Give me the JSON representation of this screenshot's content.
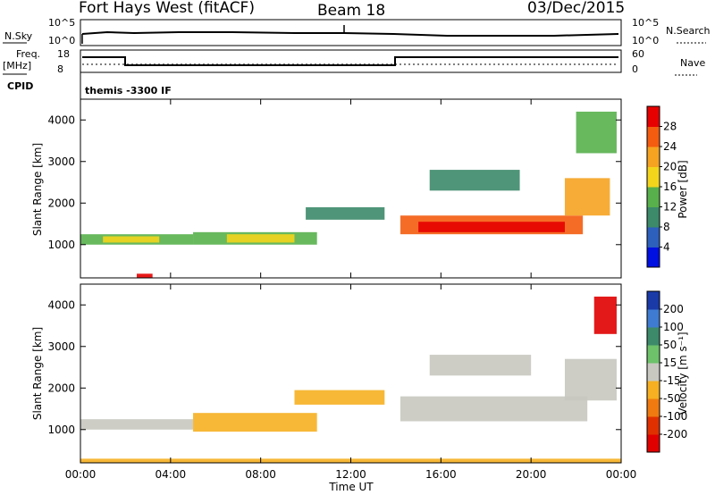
{
  "header": {
    "title": "Fort Hays West (fitACF)",
    "beam": "Beam 18",
    "date": "03/Dec/2015"
  },
  "top_panels": {
    "nsky_label": "N.Sky",
    "nsky_ticks": [
      "10^5",
      "10^0"
    ],
    "nsearch_label": "N.Search",
    "nsearch_ticks": [
      "10^5",
      "10^0"
    ],
    "freq_label_1": "Freq.",
    "freq_label_2": "[MHz]",
    "freq_ticks": [
      "18",
      "8"
    ],
    "nave_label": "Nave",
    "nave_ticks": [
      "60",
      "0"
    ],
    "cpid_label": "CPID",
    "cpid_text": "themis -3300 IF"
  },
  "chart_data": [
    {
      "type": "heatmap",
      "name": "power",
      "ylabel": "Slant Range [km]",
      "ylim": [
        200,
        4500
      ],
      "y_ticks": [
        "1000",
        "2000",
        "3000",
        "4000"
      ],
      "y_tick_values": [
        1000,
        2000,
        3000,
        4000
      ],
      "xlim": [
        0,
        24
      ],
      "colorbar": {
        "label": "Power [dB]",
        "ticks": [
          "4",
          "8",
          "12",
          "16",
          "20",
          "24",
          "28"
        ],
        "colors": [
          "#0010e0",
          "#2d5fbd",
          "#3c8a6a",
          "#58b04c",
          "#f3d51c",
          "#f6a321",
          "#f45c0f",
          "#e60000"
        ]
      },
      "regions": [
        {
          "t0": 0.0,
          "t1": 5.0,
          "r0": 1000,
          "r1": 1250,
          "color": "#58b04c"
        },
        {
          "t0": 1.0,
          "t1": 3.5,
          "r0": 1050,
          "r1": 1200,
          "color": "#f3d51c"
        },
        {
          "t0": 5.0,
          "t1": 10.5,
          "r0": 1000,
          "r1": 1300,
          "color": "#58b04c"
        },
        {
          "t0": 6.5,
          "t1": 9.5,
          "r0": 1050,
          "r1": 1250,
          "color": "#f3d51c"
        },
        {
          "t0": 10.0,
          "t1": 13.5,
          "r0": 1600,
          "r1": 1900,
          "color": "#3c8a6a"
        },
        {
          "t0": 14.2,
          "t1": 22.3,
          "r0": 1250,
          "r1": 1700,
          "color": "#f45c0f"
        },
        {
          "t0": 15.0,
          "t1": 21.5,
          "r0": 1300,
          "r1": 1550,
          "color": "#e60000"
        },
        {
          "t0": 21.5,
          "t1": 23.5,
          "r0": 1700,
          "r1": 2600,
          "color": "#f6a321"
        },
        {
          "t0": 22.0,
          "t1": 23.8,
          "r0": 3200,
          "r1": 4200,
          "color": "#58b04c"
        },
        {
          "t0": 15.5,
          "t1": 19.5,
          "r0": 2300,
          "r1": 2800,
          "color": "#3c8a6a"
        },
        {
          "t0": 2.5,
          "t1": 3.2,
          "r0": 200,
          "r1": 300,
          "color": "#e60000"
        }
      ]
    },
    {
      "type": "heatmap",
      "name": "velocity",
      "ylabel": "Slant Range [km]",
      "ylim": [
        200,
        4500
      ],
      "y_ticks": [
        "1000",
        "2000",
        "3000",
        "4000"
      ],
      "y_tick_values": [
        1000,
        2000,
        3000,
        4000
      ],
      "xlim": [
        0,
        24
      ],
      "xlabel": "Time UT",
      "x_ticks": [
        "00:00",
        "04:00",
        "08:00",
        "12:00",
        "16:00",
        "20:00",
        "00:00"
      ],
      "colorbar": {
        "label": "Velocity [m s⁻¹]",
        "ticks": [
          "200",
          "100",
          "50",
          "15",
          "-15",
          "-50",
          "-100",
          "-200"
        ],
        "colors": [
          "#1a3aa8",
          "#3f7bd0",
          "#3c8a6a",
          "#6dc26a",
          "#c8c8c0",
          "#f6b021",
          "#f07a10",
          "#e03000",
          "#e00000"
        ]
      },
      "regions": [
        {
          "t0": 0.0,
          "t1": 5.0,
          "r0": 1000,
          "r1": 1250,
          "color": "#c8c8c0"
        },
        {
          "t0": 5.0,
          "t1": 10.5,
          "r0": 950,
          "r1": 1400,
          "color": "#f6b021"
        },
        {
          "t0": 9.5,
          "t1": 13.5,
          "r0": 1600,
          "r1": 1950,
          "color": "#f6b021"
        },
        {
          "t0": 14.2,
          "t1": 22.5,
          "r0": 1200,
          "r1": 1800,
          "color": "#c8c8c0"
        },
        {
          "t0": 21.5,
          "t1": 23.8,
          "r0": 1700,
          "r1": 2700,
          "color": "#c8c8c0"
        },
        {
          "t0": 15.5,
          "t1": 20.0,
          "r0": 2300,
          "r1": 2800,
          "color": "#c8c8c0"
        },
        {
          "t0": 22.8,
          "t1": 23.8,
          "r0": 3300,
          "r1": 4200,
          "color": "#e00000"
        },
        {
          "t0": 0.0,
          "t1": 24.0,
          "r0": 200,
          "r1": 300,
          "color": "#f6b021"
        }
      ]
    }
  ]
}
